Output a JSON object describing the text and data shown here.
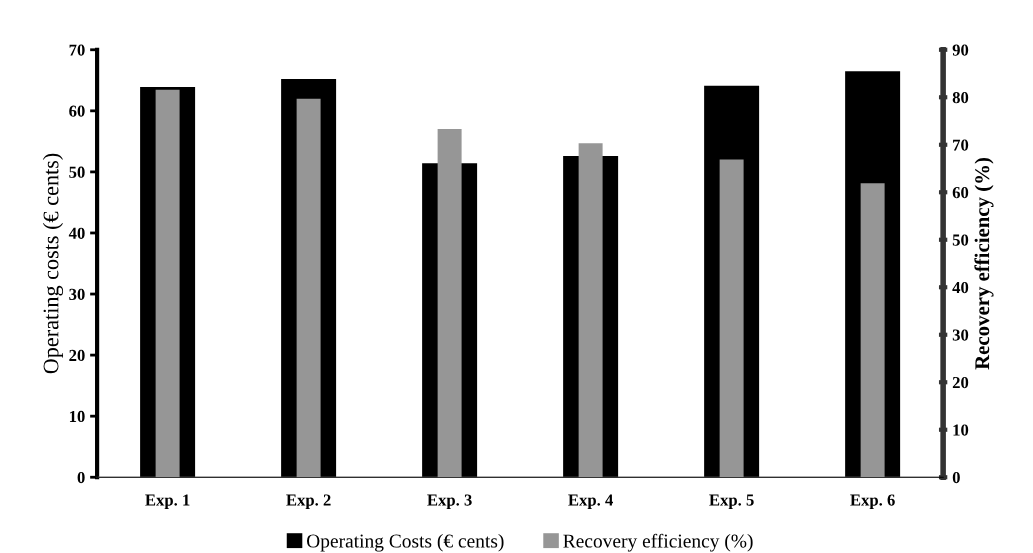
{
  "chart_data": {
    "type": "bar",
    "categories": [
      "Exp. 1",
      "Exp. 2",
      "Exp. 3",
      "Exp. 4",
      "Exp. 5",
      "Exp. 6"
    ],
    "series": [
      {
        "name": "Operating Costs (€ cents)",
        "color": "#000000",
        "values": [
          63.9,
          65.2,
          51.4,
          52.6,
          64.1,
          66.5
        ]
      },
      {
        "name": "Recovery efficiency (%)",
        "color": "#969696",
        "axis": "y2",
        "values": [
          81.6,
          79.7,
          73.3,
          70.3,
          66.9,
          61.9
        ]
      }
    ],
    "ylabel": "Operating costs (€ cents)",
    "y2label": "Recovery efficiency (%)",
    "ylim": [
      0,
      70
    ],
    "yticks": [
      0,
      10,
      20,
      30,
      40,
      50,
      60,
      70
    ],
    "y2lim": [
      0,
      90
    ],
    "y2ticks": [
      0,
      10,
      20,
      30,
      40,
      50,
      60,
      70,
      80,
      90
    ],
    "grid": false,
    "legend": "bottom"
  }
}
